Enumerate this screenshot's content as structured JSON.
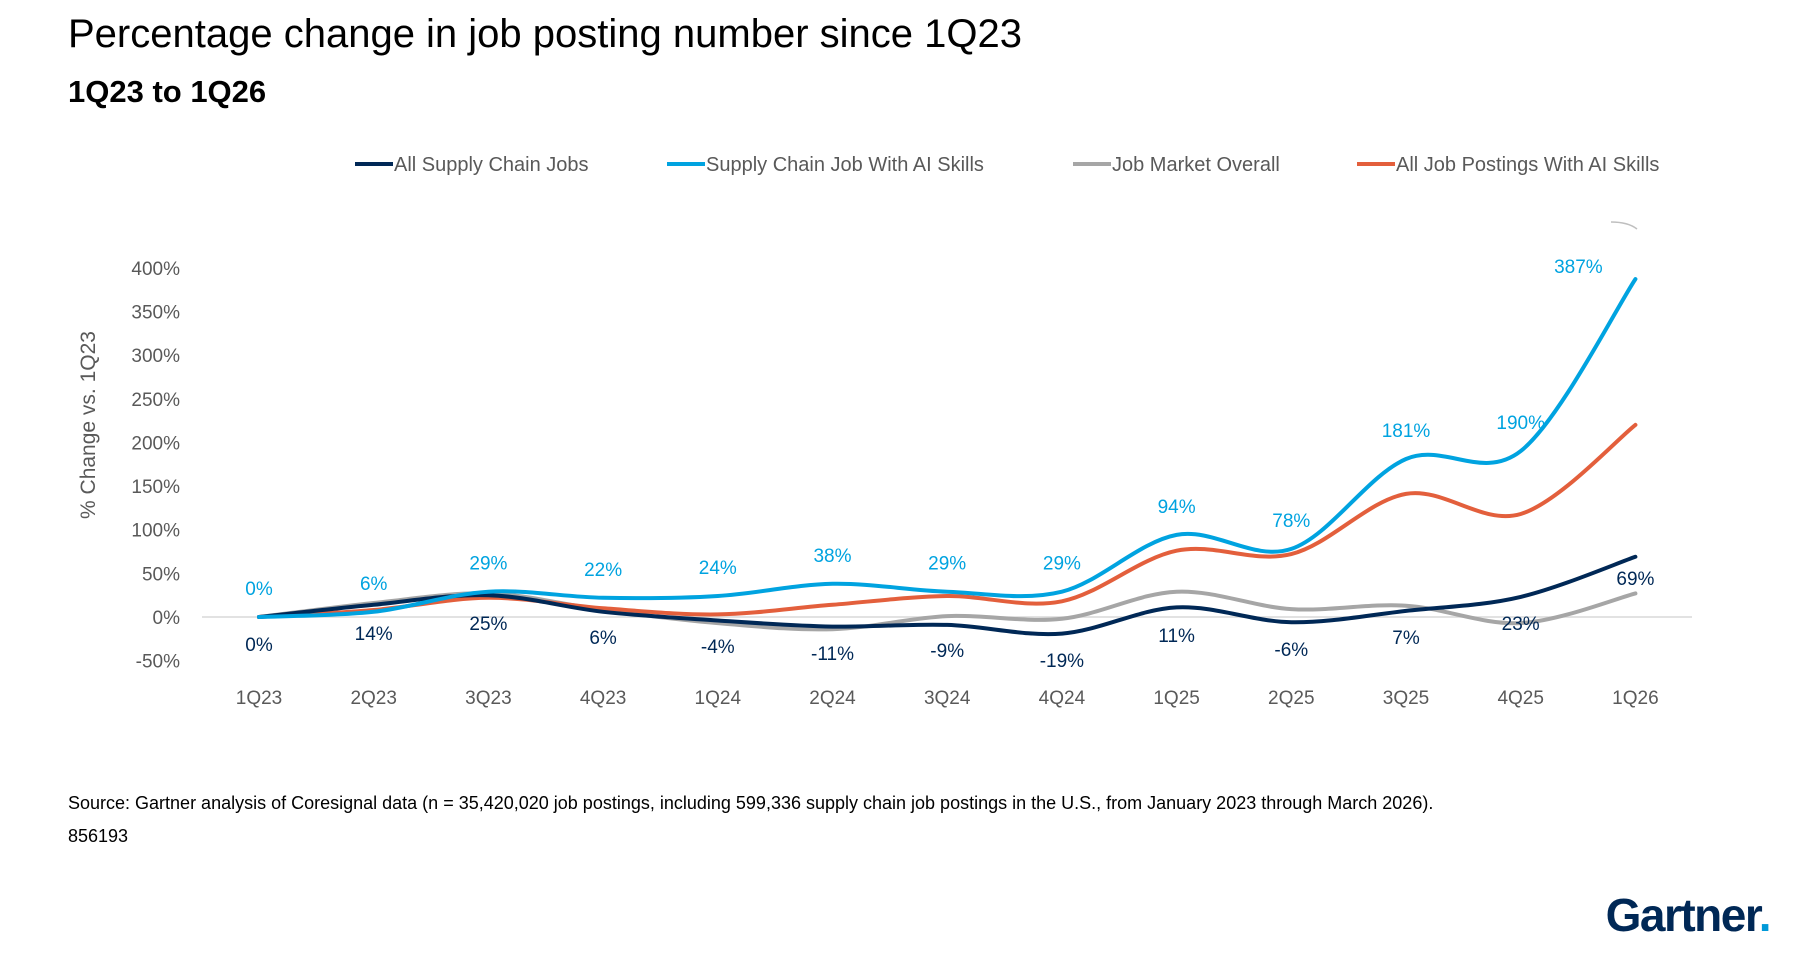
{
  "title": "Percentage change in job posting number since 1Q23",
  "subtitle": "1Q23 to 1Q26",
  "source": "Source: Gartner analysis of Coresignal data (n = 35,420,020 job postings, including 599,336 supply chain job postings in the U.S., from January 2023 through March 2026).",
  "doc_id": "856193",
  "logo_text": "Gartner",
  "logo_dot": ".",
  "chart_data": {
    "type": "line",
    "ylabel": "% Change vs. 1Q23",
    "ylim": [
      -50,
      400
    ],
    "y_ticks": [
      {
        "value": 400,
        "label": "400%"
      },
      {
        "value": 350,
        "label": "350%"
      },
      {
        "value": 300,
        "label": "300%"
      },
      {
        "value": 250,
        "label": "250%"
      },
      {
        "value": 200,
        "label": "200%"
      },
      {
        "value": 150,
        "label": "150%"
      },
      {
        "value": 100,
        "label": "100%"
      },
      {
        "value": 50,
        "label": "50%"
      },
      {
        "value": 0,
        "label": "0%"
      },
      {
        "value": -50,
        "label": "-50%"
      }
    ],
    "categories": [
      "1Q23",
      "2Q23",
      "3Q23",
      "4Q23",
      "1Q24",
      "2Q24",
      "3Q24",
      "4Q24",
      "1Q25",
      "2Q25",
      "3Q25",
      "4Q25",
      "1Q26"
    ],
    "legend_position": "top",
    "series": [
      {
        "name": "All Supply Chain Jobs",
        "color": "#002856",
        "values": [
          0,
          14,
          25,
          6,
          -4,
          -11,
          -9,
          -19,
          11,
          -6,
          7,
          23,
          69
        ],
        "labels": [
          "0%",
          "14%",
          "25%",
          "6%",
          "-4%",
          "-11%",
          "-9%",
          "-19%",
          "11%",
          "-6%",
          "7%",
          "23%",
          "69%"
        ]
      },
      {
        "name": "Supply Chain Job With AI Skills",
        "color": "#00A3E0",
        "values": [
          0,
          6,
          29,
          22,
          24,
          38,
          29,
          29,
          94,
          78,
          181,
          190,
          387
        ],
        "labels": [
          "0%",
          "6%",
          "29%",
          "22%",
          "24%",
          "38%",
          "29%",
          "29%",
          "94%",
          "78%",
          "181%",
          "190%",
          "387%"
        ]
      },
      {
        "name": "Job Market Overall",
        "color": "#A6A6A6",
        "values": [
          0,
          16,
          27,
          8,
          -7,
          -14,
          1,
          -2,
          29,
          9,
          13,
          -7,
          27
        ]
      },
      {
        "name": "All Job Postings With AI Skills",
        "color": "#E35F3C",
        "values": [
          0,
          8,
          22,
          10,
          3,
          14,
          24,
          18,
          76,
          72,
          141,
          118,
          220
        ]
      }
    ]
  }
}
